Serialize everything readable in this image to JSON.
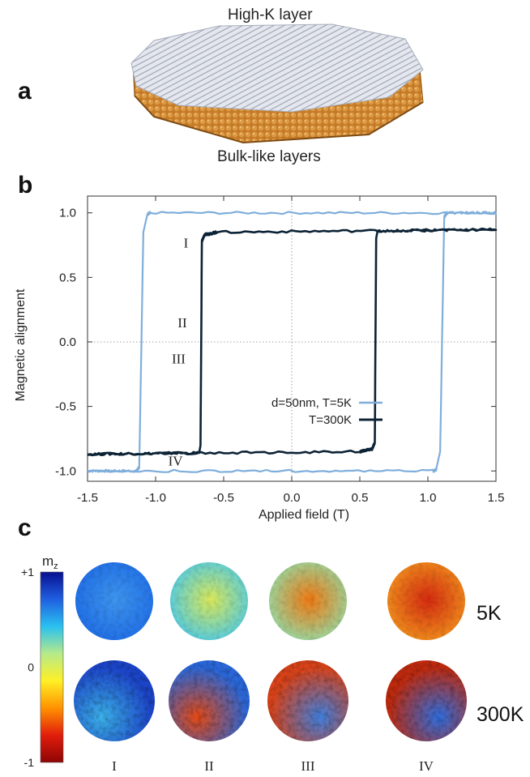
{
  "panels": {
    "a": {
      "letter": "a",
      "top_label": "High-K layer",
      "bottom_label": "Bulk-like layers",
      "colors": {
        "top_layer": "#c9cdd6",
        "bulk_layers": "#c8802c"
      }
    },
    "b": {
      "letter": "b"
    },
    "c": {
      "letter": "c"
    }
  },
  "chart_data": {
    "type": "line",
    "xlabel": "Applied field (T)",
    "ylabel": "Magnetic alignment",
    "xlim": [
      -1.5,
      1.5
    ],
    "ylim": [
      -1.08,
      1.13
    ],
    "xticks": [
      "-1.5",
      "-1.0",
      "-0.5",
      "0.0",
      "0.5",
      "1.0",
      "1.5"
    ],
    "yticks": [
      "1.0",
      "0.5",
      "0.0",
      "-0.5",
      "-1.0"
    ],
    "xtick_values": [
      -1.5,
      -1.0,
      -0.5,
      0.0,
      0.5,
      1.0,
      1.5
    ],
    "ytick_values": [
      1.0,
      0.5,
      0.0,
      -0.5,
      -1.0
    ],
    "zero_lines": "dotted",
    "legend_placement": "lower-center",
    "series": [
      {
        "name": "d=50nm, T=5K",
        "color": "#7faedb",
        "loop": [
          [
            -1.5,
            -1.0
          ],
          [
            -1.14,
            -1.0
          ],
          [
            -1.12,
            -0.97
          ],
          [
            -1.09,
            0.85
          ],
          [
            -1.06,
            0.99
          ],
          [
            -1.04,
            1.0
          ],
          [
            1.5,
            1.0
          ],
          [
            1.14,
            1.0
          ],
          [
            1.12,
            0.97
          ],
          [
            1.09,
            -0.85
          ],
          [
            1.06,
            -0.99
          ],
          [
            1.04,
            -1.0
          ],
          [
            -1.5,
            -1.0
          ]
        ]
      },
      {
        "name": "T=300K",
        "color": "#0c2235",
        "loop": [
          [
            -1.5,
            -0.87
          ],
          [
            -0.68,
            -0.86
          ],
          [
            -0.67,
            -0.8
          ],
          [
            -0.66,
            0.78
          ],
          [
            -0.64,
            0.83
          ],
          [
            -0.55,
            0.85
          ],
          [
            1.5,
            0.87
          ],
          [
            0.63,
            0.86
          ],
          [
            0.62,
            0.8
          ],
          [
            0.61,
            -0.78
          ],
          [
            0.59,
            -0.83
          ],
          [
            0.5,
            -0.85
          ],
          [
            -1.5,
            -0.87
          ]
        ]
      }
    ],
    "annotations": [
      {
        "text": "I",
        "x": -0.76,
        "y": 0.77
      },
      {
        "text": "II",
        "x": -0.77,
        "y": 0.15
      },
      {
        "text": "III",
        "x": -0.78,
        "y": -0.13
      },
      {
        "text": "IV",
        "x": -0.8,
        "y": -0.92
      }
    ]
  },
  "colorbar": {
    "label": "m",
    "label_sub": "z",
    "ticks": [
      "+1",
      "0",
      "-1"
    ],
    "tick_values": [
      1,
      0,
      -1
    ],
    "stops": [
      "#08108f",
      "#1f5fe0",
      "#29c1ef",
      "#b6ea8a",
      "#fff026",
      "#ff9200",
      "#e11d0c",
      "#8e0505"
    ]
  },
  "snapshots": {
    "columns": [
      "I",
      "II",
      "III",
      "IV"
    ],
    "rows": [
      {
        "label": "5K",
        "tiles": [
          {
            "base": "#1d6ae6",
            "core": "#3e95ee",
            "mz": 0.75
          },
          {
            "base": "#45c8ef",
            "core": "#d9e85a",
            "mz": 0.3
          },
          {
            "base": "#8fe2b0",
            "core": "#f07a12",
            "mz": -0.1
          },
          {
            "base": "#f49a1e",
            "core": "#d42a10",
            "mz": -0.55
          }
        ]
      },
      {
        "label": "300K",
        "tiles": [
          {
            "base": "#1c44c8",
            "core": "#3bb0e8",
            "mz": 0.7
          },
          {
            "base": "#2a67d8",
            "core": "#e44814",
            "mz": 0.3
          },
          {
            "base": "#d8431a",
            "core": "#3f7fde",
            "mz": -0.2
          },
          {
            "base": "#bf2a0e",
            "core": "#2e6ee0",
            "mz": -0.55
          }
        ]
      }
    ]
  }
}
